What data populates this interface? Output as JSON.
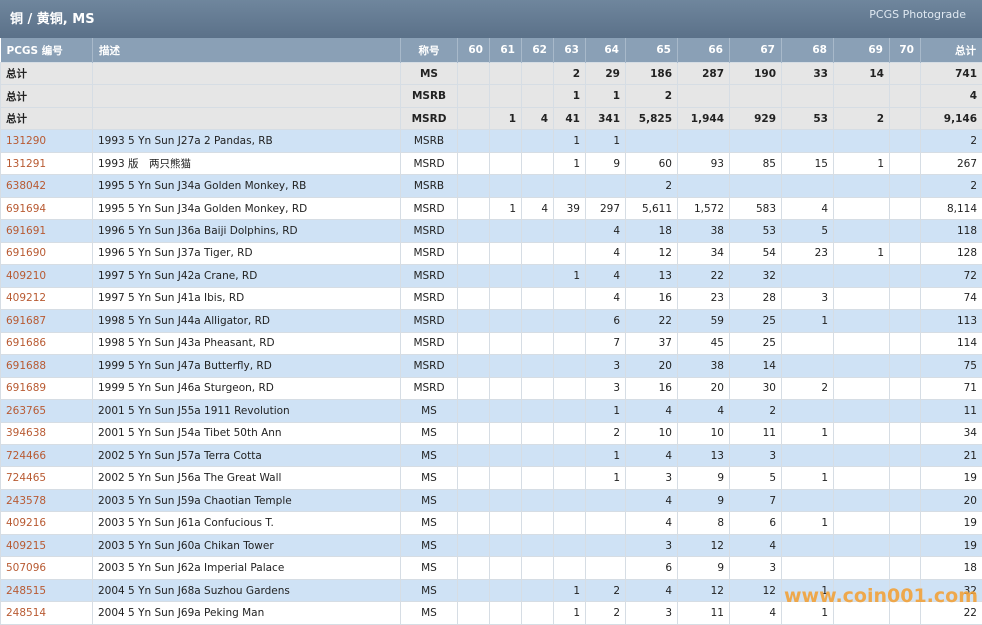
{
  "header": {
    "title": "铜 / 黄铜, MS",
    "link": "PCGS Photograde"
  },
  "table": {
    "columns": [
      "PCGS 编号",
      "描述",
      "称号",
      "60",
      "61",
      "62",
      "63",
      "64",
      "65",
      "66",
      "67",
      "68",
      "69",
      "70",
      "总计"
    ],
    "totals": [
      [
        "总计",
        null,
        "MS",
        null,
        null,
        null,
        "2",
        "29",
        "186",
        "287",
        "190",
        "33",
        "14",
        null,
        "741"
      ],
      [
        "总计",
        null,
        "MSRB",
        null,
        null,
        null,
        "1",
        "1",
        "2",
        null,
        null,
        null,
        null,
        null,
        "4"
      ],
      [
        "总计",
        null,
        "MSRD",
        null,
        "1",
        "4",
        "41",
        "341",
        "5,825",
        "1,944",
        "929",
        "53",
        "2",
        null,
        "9,146"
      ]
    ],
    "rows": [
      [
        "131290",
        "1993 5 Yn Sun J27a 2 Pandas, RB",
        "MSRB",
        null,
        null,
        null,
        "1",
        "1",
        null,
        null,
        null,
        null,
        null,
        null,
        "2"
      ],
      [
        "131291",
        "1993 版　两只熊猫",
        "MSRD",
        null,
        null,
        null,
        "1",
        "9",
        "60",
        "93",
        "85",
        "15",
        "1",
        null,
        "267"
      ],
      [
        "638042",
        "1995 5 Yn Sun J34a Golden Monkey, RB",
        "MSRB",
        null,
        null,
        null,
        null,
        null,
        "2",
        null,
        null,
        null,
        null,
        null,
        "2"
      ],
      [
        "691694",
        "1995 5 Yn Sun J34a Golden Monkey, RD",
        "MSRD",
        null,
        "1",
        "4",
        "39",
        "297",
        "5,611",
        "1,572",
        "583",
        "4",
        null,
        null,
        "8,114"
      ],
      [
        "691691",
        "1996 5 Yn Sun J36a Baiji Dolphins, RD",
        "MSRD",
        null,
        null,
        null,
        null,
        "4",
        "18",
        "38",
        "53",
        "5",
        null,
        null,
        "118"
      ],
      [
        "691690",
        "1996 5 Yn Sun J37a Tiger, RD",
        "MSRD",
        null,
        null,
        null,
        null,
        "4",
        "12",
        "34",
        "54",
        "23",
        "1",
        null,
        "128"
      ],
      [
        "409210",
        "1997 5 Yn Sun J42a Crane, RD",
        "MSRD",
        null,
        null,
        null,
        "1",
        "4",
        "13",
        "22",
        "32",
        null,
        null,
        null,
        "72"
      ],
      [
        "409212",
        "1997 5 Yn Sun J41a Ibis, RD",
        "MSRD",
        null,
        null,
        null,
        null,
        "4",
        "16",
        "23",
        "28",
        "3",
        null,
        null,
        "74"
      ],
      [
        "691687",
        "1998 5 Yn Sun J44a Alligator, RD",
        "MSRD",
        null,
        null,
        null,
        null,
        "6",
        "22",
        "59",
        "25",
        "1",
        null,
        null,
        "113"
      ],
      [
        "691686",
        "1998 5 Yn Sun J43a Pheasant, RD",
        "MSRD",
        null,
        null,
        null,
        null,
        "7",
        "37",
        "45",
        "25",
        null,
        null,
        null,
        "114"
      ],
      [
        "691688",
        "1999 5 Yn Sun J47a Butterfly, RD",
        "MSRD",
        null,
        null,
        null,
        null,
        "3",
        "20",
        "38",
        "14",
        null,
        null,
        null,
        "75"
      ],
      [
        "691689",
        "1999 5 Yn Sun J46a Sturgeon, RD",
        "MSRD",
        null,
        null,
        null,
        null,
        "3",
        "16",
        "20",
        "30",
        "2",
        null,
        null,
        "71"
      ],
      [
        "263765",
        "2001 5 Yn Sun J55a 1911 Revolution",
        "MS",
        null,
        null,
        null,
        null,
        "1",
        "4",
        "4",
        "2",
        null,
        null,
        null,
        "11"
      ],
      [
        "394638",
        "2001 5 Yn Sun J54a Tibet 50th Ann",
        "MS",
        null,
        null,
        null,
        null,
        "2",
        "10",
        "10",
        "11",
        "1",
        null,
        null,
        "34"
      ],
      [
        "724466",
        "2002 5 Yn Sun J57a Terra Cotta",
        "MS",
        null,
        null,
        null,
        null,
        "1",
        "4",
        "13",
        "3",
        null,
        null,
        null,
        "21"
      ],
      [
        "724465",
        "2002 5 Yn Sun J56a The Great Wall",
        "MS",
        null,
        null,
        null,
        null,
        "1",
        "3",
        "9",
        "5",
        "1",
        null,
        null,
        "19"
      ],
      [
        "243578",
        "2003 5 Yn Sun J59a Chaotian Temple",
        "MS",
        null,
        null,
        null,
        null,
        null,
        "4",
        "9",
        "7",
        null,
        null,
        null,
        "20"
      ],
      [
        "409216",
        "2003 5 Yn Sun J61a Confucious T.",
        "MS",
        null,
        null,
        null,
        null,
        null,
        "4",
        "8",
        "6",
        "1",
        null,
        null,
        "19"
      ],
      [
        "409215",
        "2003 5 Yn Sun J60a Chikan Tower",
        "MS",
        null,
        null,
        null,
        null,
        null,
        "3",
        "12",
        "4",
        null,
        null,
        null,
        "19"
      ],
      [
        "507096",
        "2003 5 Yn Sun J62a Imperial Palace",
        "MS",
        null,
        null,
        null,
        null,
        null,
        "6",
        "9",
        "3",
        null,
        null,
        null,
        "18"
      ],
      [
        "248515",
        "2004 5 Yn Sun J68a Suzhou Gardens",
        "MS",
        null,
        null,
        null,
        "1",
        "2",
        "4",
        "12",
        "12",
        "1",
        null,
        null,
        "32"
      ],
      [
        "248514",
        "2004 5 Yn Sun J69a Peking Man",
        "MS",
        null,
        null,
        null,
        "1",
        "2",
        "3",
        "11",
        "4",
        "1",
        null,
        null,
        "22"
      ]
    ]
  },
  "watermark": "www.coin001.com"
}
